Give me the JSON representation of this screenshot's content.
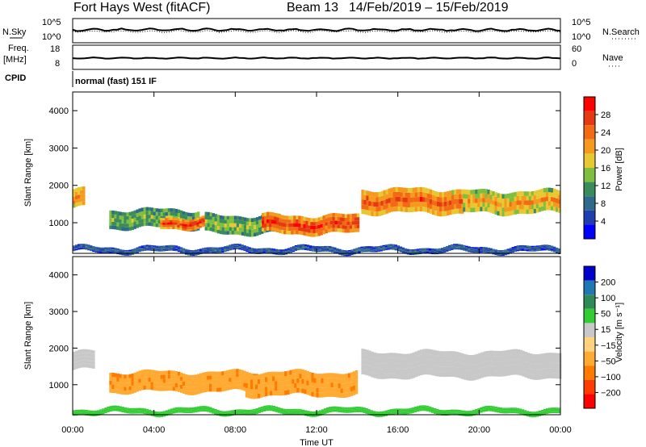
{
  "header": {
    "radar": "Fort Hays West (fitACF)",
    "beam": "Beam 13",
    "date_range": "14/Feb/2019 – 15/Feb/2019"
  },
  "top_panels": {
    "nsky_label": "N.Sky",
    "nsky_ticks": [
      "10^5",
      "10^0"
    ],
    "nsearch_label": "N.Search",
    "nsearch_ticks": [
      "10^5",
      "10^0"
    ],
    "freq_label": "Freq.",
    "freq_unit": "[MHz]",
    "freq_ticks": [
      "18",
      "8"
    ],
    "nave_label": "Nave",
    "nave_ticks": [
      "60",
      "0"
    ],
    "cpid_label": "CPID",
    "cpid_value": "normal (fast) 151 IF"
  },
  "colors": {
    "power_scale": [
      "#0000ff",
      "#1f3fb0",
      "#2f6a8a",
      "#3a8c5c",
      "#7fbf3f",
      "#e8c832",
      "#f59a1e",
      "#f26b14",
      "#e43a12",
      "#ff0000"
    ],
    "velocity_scale": [
      "#ff0000",
      "#ff3c00",
      "#ff7a00",
      "#ffaa32",
      "#ffd27f",
      "#c8c8c8",
      "#32cd32",
      "#2e8b57",
      "#1f78b4",
      "#0000cd"
    ]
  },
  "chart_data": [
    {
      "type": "heatmap",
      "panel": "power",
      "ylabel": "Slant Range [km]",
      "xlabel": "Time UT",
      "x_ticks": [
        "00:00",
        "04:00",
        "08:00",
        "12:00",
        "16:00",
        "20:00",
        "00:00"
      ],
      "y_ticks": [
        4000,
        3000,
        2000,
        1000
      ],
      "xlim_hours": [
        0,
        24
      ],
      "ylim_km": [
        180,
        4500
      ],
      "colorbar_label": "Power [dB]",
      "colorbar_ticks": [
        "28",
        "24",
        "20",
        "16",
        "12",
        "8",
        "4"
      ],
      "colorbar_range": [
        0,
        30
      ],
      "echo_bands": [
        {
          "t_start": 0.0,
          "t_end": 0.6,
          "range_low": 1400,
          "range_high": 1900,
          "power_db": 20
        },
        {
          "t_start": 1.8,
          "t_end": 6.2,
          "range_low": 850,
          "range_high": 1350,
          "power_db": 12
        },
        {
          "t_start": 4.3,
          "t_end": 6.6,
          "range_low": 850,
          "range_high": 1150,
          "power_db": 24
        },
        {
          "t_start": 6.5,
          "t_end": 10.2,
          "range_low": 700,
          "range_high": 1200,
          "power_db": 13
        },
        {
          "t_start": 9.3,
          "t_end": 14.0,
          "range_low": 700,
          "range_high": 1200,
          "power_db": 24
        },
        {
          "t_start": 14.2,
          "t_end": 19.2,
          "range_low": 1250,
          "range_high": 1900,
          "power_db": 22
        },
        {
          "t_start": 19.2,
          "t_end": 24.0,
          "range_low": 1250,
          "range_high": 1850,
          "power_db": 18
        },
        {
          "t_start": 0.0,
          "t_end": 24.0,
          "range_low": 200,
          "range_high": 350,
          "power_db": 6
        }
      ]
    },
    {
      "type": "heatmap",
      "panel": "velocity",
      "ylabel": "Slant Range [km]",
      "xlabel": "Time UT",
      "x_ticks": [
        "00:00",
        "04:00",
        "08:00",
        "12:00",
        "16:00",
        "20:00",
        "00:00"
      ],
      "y_ticks": [
        4000,
        3000,
        2000,
        1000
      ],
      "xlim_hours": [
        0,
        24
      ],
      "ylim_km": [
        180,
        4500
      ],
      "colorbar_label": "Velocity [m s⁻¹]",
      "colorbar_ticks": [
        "200",
        "100",
        "50",
        "15",
        "−15",
        "−50",
        "−100",
        "−200"
      ],
      "echo_bands": [
        {
          "t_start": 0.0,
          "t_end": 1.0,
          "range_low": 1400,
          "range_high": 1900,
          "velocity": 0
        },
        {
          "t_start": 1.8,
          "t_end": 9.0,
          "range_low": 800,
          "range_high": 1350,
          "velocity": -40
        },
        {
          "t_start": 8.5,
          "t_end": 14.0,
          "range_low": 700,
          "range_high": 1350,
          "velocity": -40
        },
        {
          "t_start": 14.2,
          "t_end": 24.0,
          "range_low": 1200,
          "range_high": 1900,
          "velocity": 0
        },
        {
          "t_start": 0.0,
          "t_end": 24.0,
          "range_low": 200,
          "range_high": 350,
          "velocity": 30
        }
      ]
    }
  ]
}
